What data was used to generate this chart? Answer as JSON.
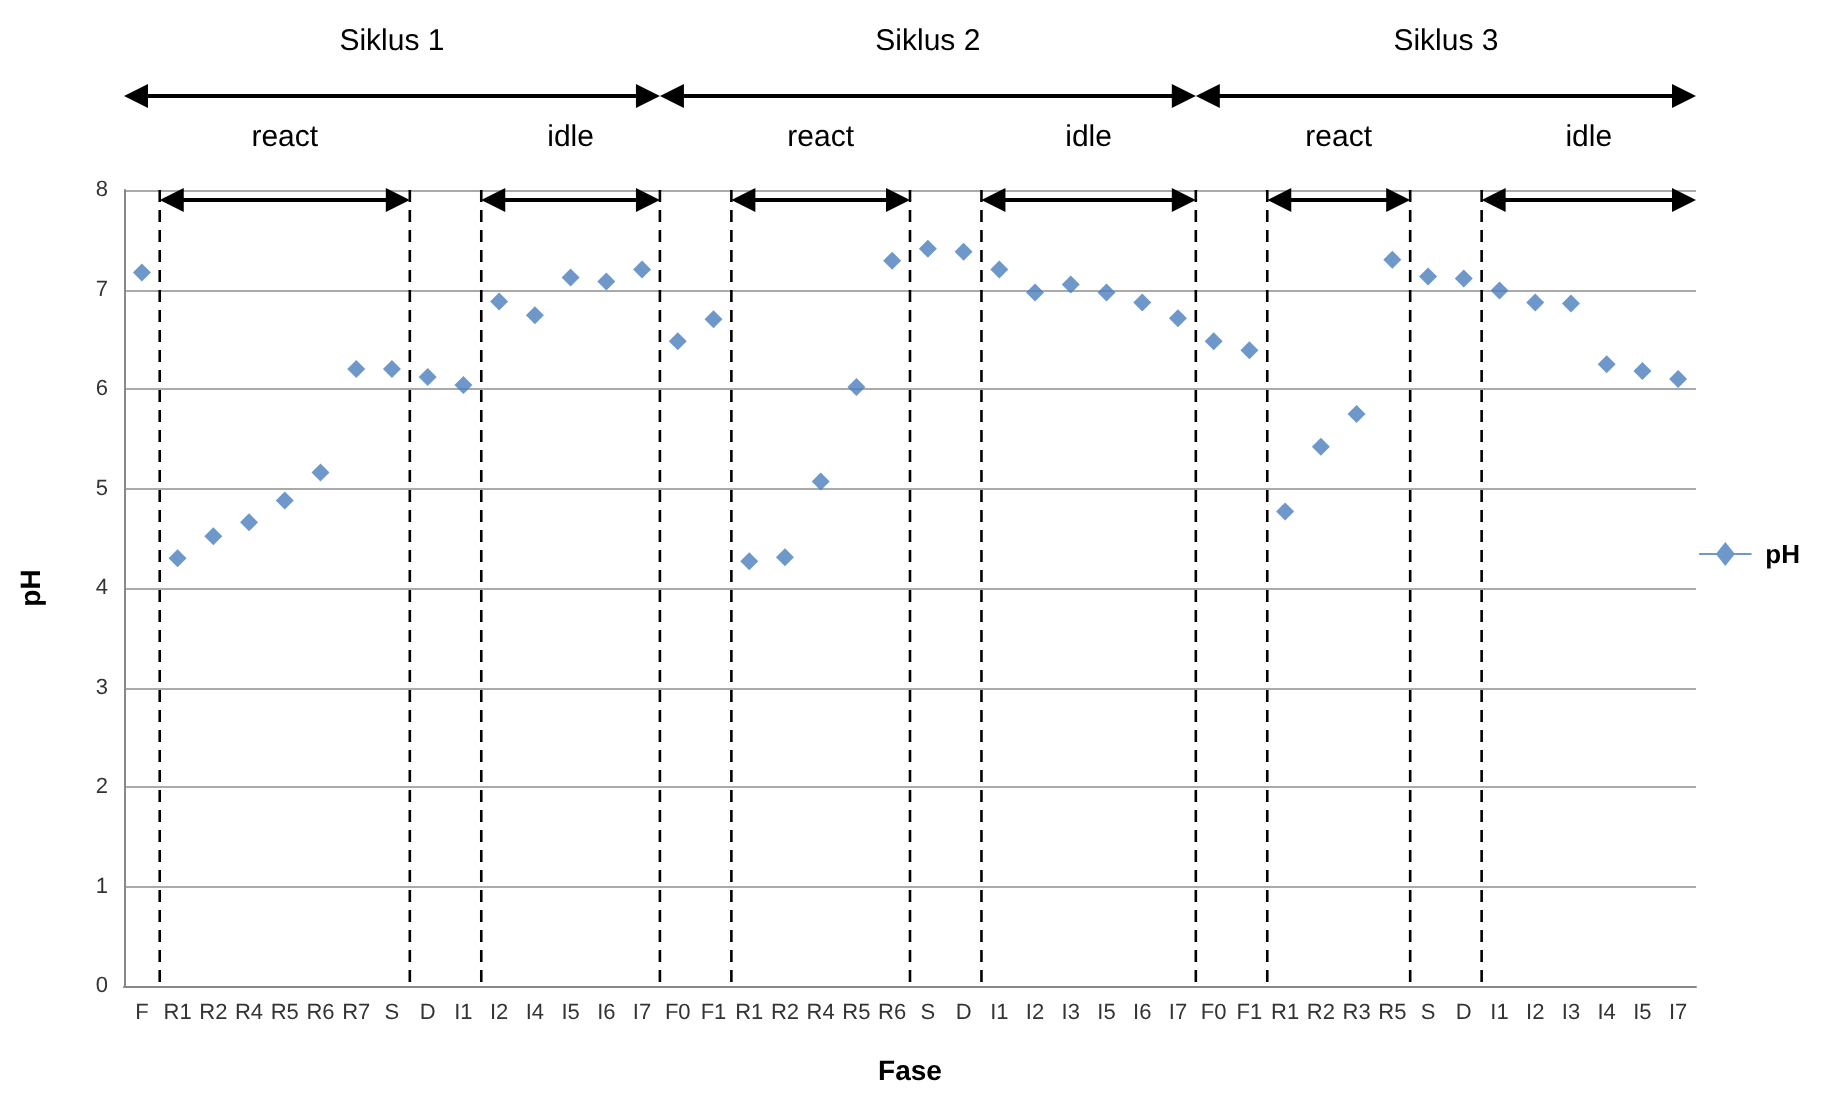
{
  "chart_data": {
    "type": "scatter",
    "xlabel": "Fase",
    "ylabel": "pH",
    "categories": [
      "F",
      "R1",
      "R2",
      "R4",
      "R5",
      "R6",
      "R7",
      "S",
      "D",
      "I1",
      "I2",
      "I4",
      "I5",
      "I6",
      "I7",
      "F0",
      "F1",
      "R1",
      "R2",
      "R4",
      "R5",
      "R6",
      "S",
      "D",
      "I1",
      "I2",
      "I3",
      "I5",
      "I6",
      "I7",
      "F0",
      "F1",
      "R1",
      "R2",
      "R3",
      "R5",
      "S",
      "D",
      "I1",
      "I2",
      "I3",
      "I4",
      "I5",
      "I7"
    ],
    "ylim": [
      0,
      8
    ],
    "yticks": [
      0,
      1,
      2,
      3,
      4,
      5,
      6,
      7,
      8
    ],
    "series": [
      {
        "name": "pH",
        "color": "#4a7ebb",
        "values": [
          7.17,
          4.3,
          4.52,
          4.66,
          4.88,
          5.16,
          6.2,
          6.2,
          6.12,
          6.04,
          6.88,
          6.74,
          7.12,
          7.08,
          7.2,
          6.48,
          6.7,
          4.27,
          4.31,
          5.07,
          6.02,
          7.29,
          7.41,
          7.38,
          7.2,
          6.97,
          7.05,
          6.97,
          6.87,
          6.71,
          6.48,
          6.39,
          4.77,
          5.42,
          5.75,
          7.3,
          7.13,
          7.11,
          6.99,
          6.87,
          6.86,
          6.25,
          6.18,
          6.1
        ]
      }
    ],
    "annotations": [
      "Siklus 1",
      "Siklus 2",
      "Siklus 3",
      "react",
      "idle",
      "react",
      "idle",
      "react",
      "idle"
    ],
    "grid": "y",
    "legend": "right",
    "marker": "diamond"
  }
}
